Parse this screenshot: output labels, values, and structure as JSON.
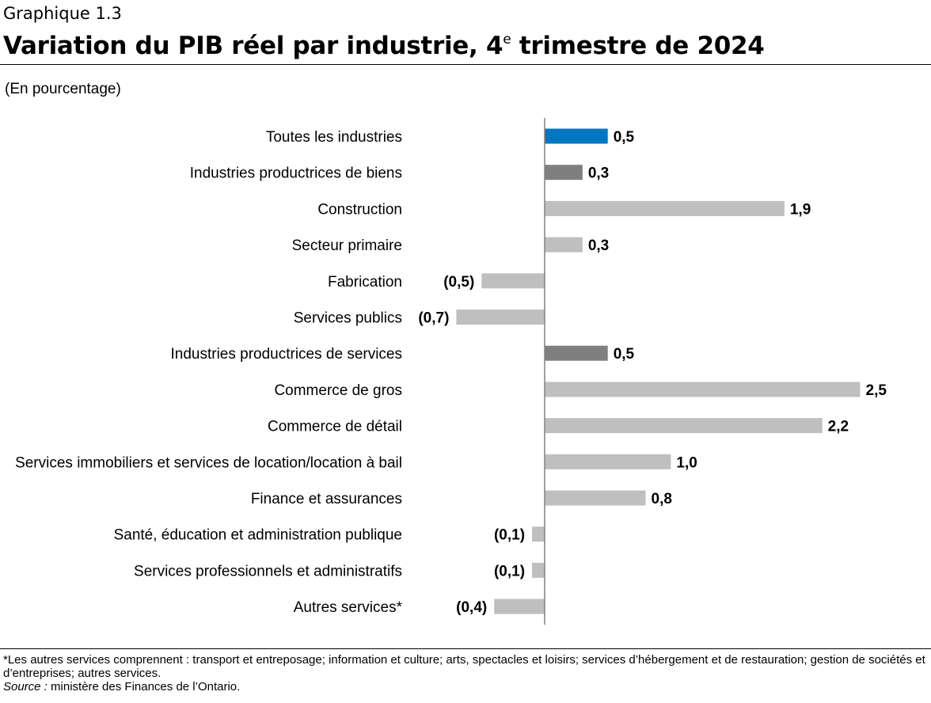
{
  "header": {
    "kicker": "Graphique 1.3",
    "title_main": "Variation du PIB réel par industrie, 4",
    "title_sup": "e",
    "title_end": " trimestre de 2024"
  },
  "chart_data": {
    "type": "bar",
    "orientation": "horizontal",
    "title": "Variation du PIB réel par industrie, 4e trimestre de 2024",
    "ylabel": "(En pourcentage)",
    "categories": [
      "Toutes les industries",
      "Industries productrices de biens",
      "Construction",
      "Secteur primaire",
      "Fabrication",
      "Services publics",
      "Industries productrices de services",
      "Commerce de gros",
      "Commerce de détail",
      "Services immobiliers et services de location/location à bail",
      "Finance et assurances",
      "Santé, éducation et administration publique",
      "Services professionnels et administratifs",
      "Autres services*"
    ],
    "values": [
      0.5,
      0.3,
      1.9,
      0.3,
      -0.5,
      -0.7,
      0.5,
      2.5,
      2.2,
      1.0,
      0.8,
      -0.1,
      -0.1,
      -0.4
    ],
    "value_labels": [
      "0,5",
      "0,3",
      "1,9",
      "0,3",
      "(0,5)",
      "(0,7)",
      "0,5",
      "2,5",
      "2,2",
      "1,0",
      "0,8",
      "(0,1)",
      "(0,1)",
      "(0,4)"
    ],
    "bar_colors": [
      "#0077c0",
      "#7f7f7f",
      "#bfbfbf",
      "#bfbfbf",
      "#bfbfbf",
      "#bfbfbf",
      "#7f7f7f",
      "#bfbfbf",
      "#bfbfbf",
      "#bfbfbf",
      "#bfbfbf",
      "#bfbfbf",
      "#bfbfbf",
      "#bfbfbf"
    ],
    "xlim": [
      -0.7,
      2.5
    ],
    "grid": false,
    "legend": "none"
  },
  "footnotes": {
    "note": "*Les autres services comprennent : transport et entreposage; information et culture; arts, spectacles et loisirs; services d’hébergement et de restauration; gestion de sociétés et d’entreprises; autres services.",
    "source_label": "Source :",
    "source_text": " ministère des Finances de l’Ontario."
  }
}
